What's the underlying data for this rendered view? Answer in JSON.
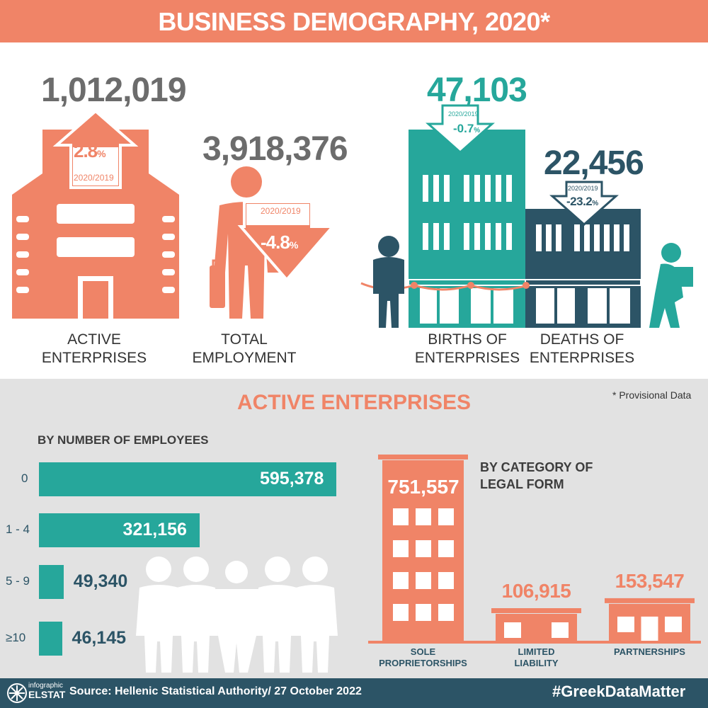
{
  "header": {
    "title": "BUSINESS DEMOGRAPHY, 2020*"
  },
  "kpis": {
    "active": {
      "value": "1,012,019",
      "change": "2.8",
      "pct": "%",
      "period": "2020/2019",
      "caption_l1": "ACTIVE",
      "caption_l2": "ENTERPRISES"
    },
    "employment": {
      "value": "3,918,376",
      "change": "-4.8",
      "pct": "%",
      "period": "2020/2019",
      "caption_l1": "TOTAL",
      "caption_l2": "EMPLOYMENT"
    },
    "births": {
      "value": "47,103",
      "change": "-0.7",
      "pct": "%",
      "period": "2020/2019",
      "caption_l1": "BIRTHS OF",
      "caption_l2": "ENTERPRISES"
    },
    "deaths": {
      "value": "22,456",
      "change": "-23.2",
      "pct": "%",
      "period": "2020/2019",
      "caption_l1": "DEATHS OF",
      "caption_l2": "ENTERPRISES"
    }
  },
  "section": {
    "title": "ACTIVE ENTERPRISES",
    "note": "* Provisional Data",
    "employees_heading": "BY NUMBER OF EMPLOYEES",
    "legal_heading_l1": "BY CATEGORY OF",
    "legal_heading_l2": "LEGAL FORM"
  },
  "chart_data": [
    {
      "type": "bar",
      "title": "BY NUMBER OF EMPLOYEES",
      "categories": [
        "0",
        "1 - 4",
        "5 - 9",
        "≥10"
      ],
      "values": [
        595378,
        321156,
        49340,
        46145
      ],
      "labels": [
        "595,378",
        "321,156",
        "49,340",
        "46,145"
      ]
    },
    {
      "type": "bar",
      "title": "BY CATEGORY OF LEGAL FORM",
      "categories": [
        "SOLE PROPRIETORSHIPS",
        "LIMITED LIABILITY",
        "PARTNERSHIPS"
      ],
      "values": [
        751557,
        106915,
        153547
      ],
      "labels": [
        "751,557",
        "106,915",
        "153,547"
      ],
      "category_lines": [
        [
          "SOLE",
          "PROPRIETORSHIPS"
        ],
        [
          "LIMITED",
          "LIABILITY"
        ],
        [
          "PARTNERSHIPS"
        ]
      ]
    }
  ],
  "footer": {
    "logo_l1": "infographic",
    "logo_l2": "ELSTAT",
    "source": "Source: Hellenic Statistical Authority/ 27 October 2022",
    "hashtag": "#GreekDataMatter"
  },
  "colors": {
    "orange": "#f08467",
    "teal": "#26a79b",
    "dark": "#2c5466",
    "grey": "#6c6c6c",
    "bg_grey": "#e2e2e2"
  }
}
